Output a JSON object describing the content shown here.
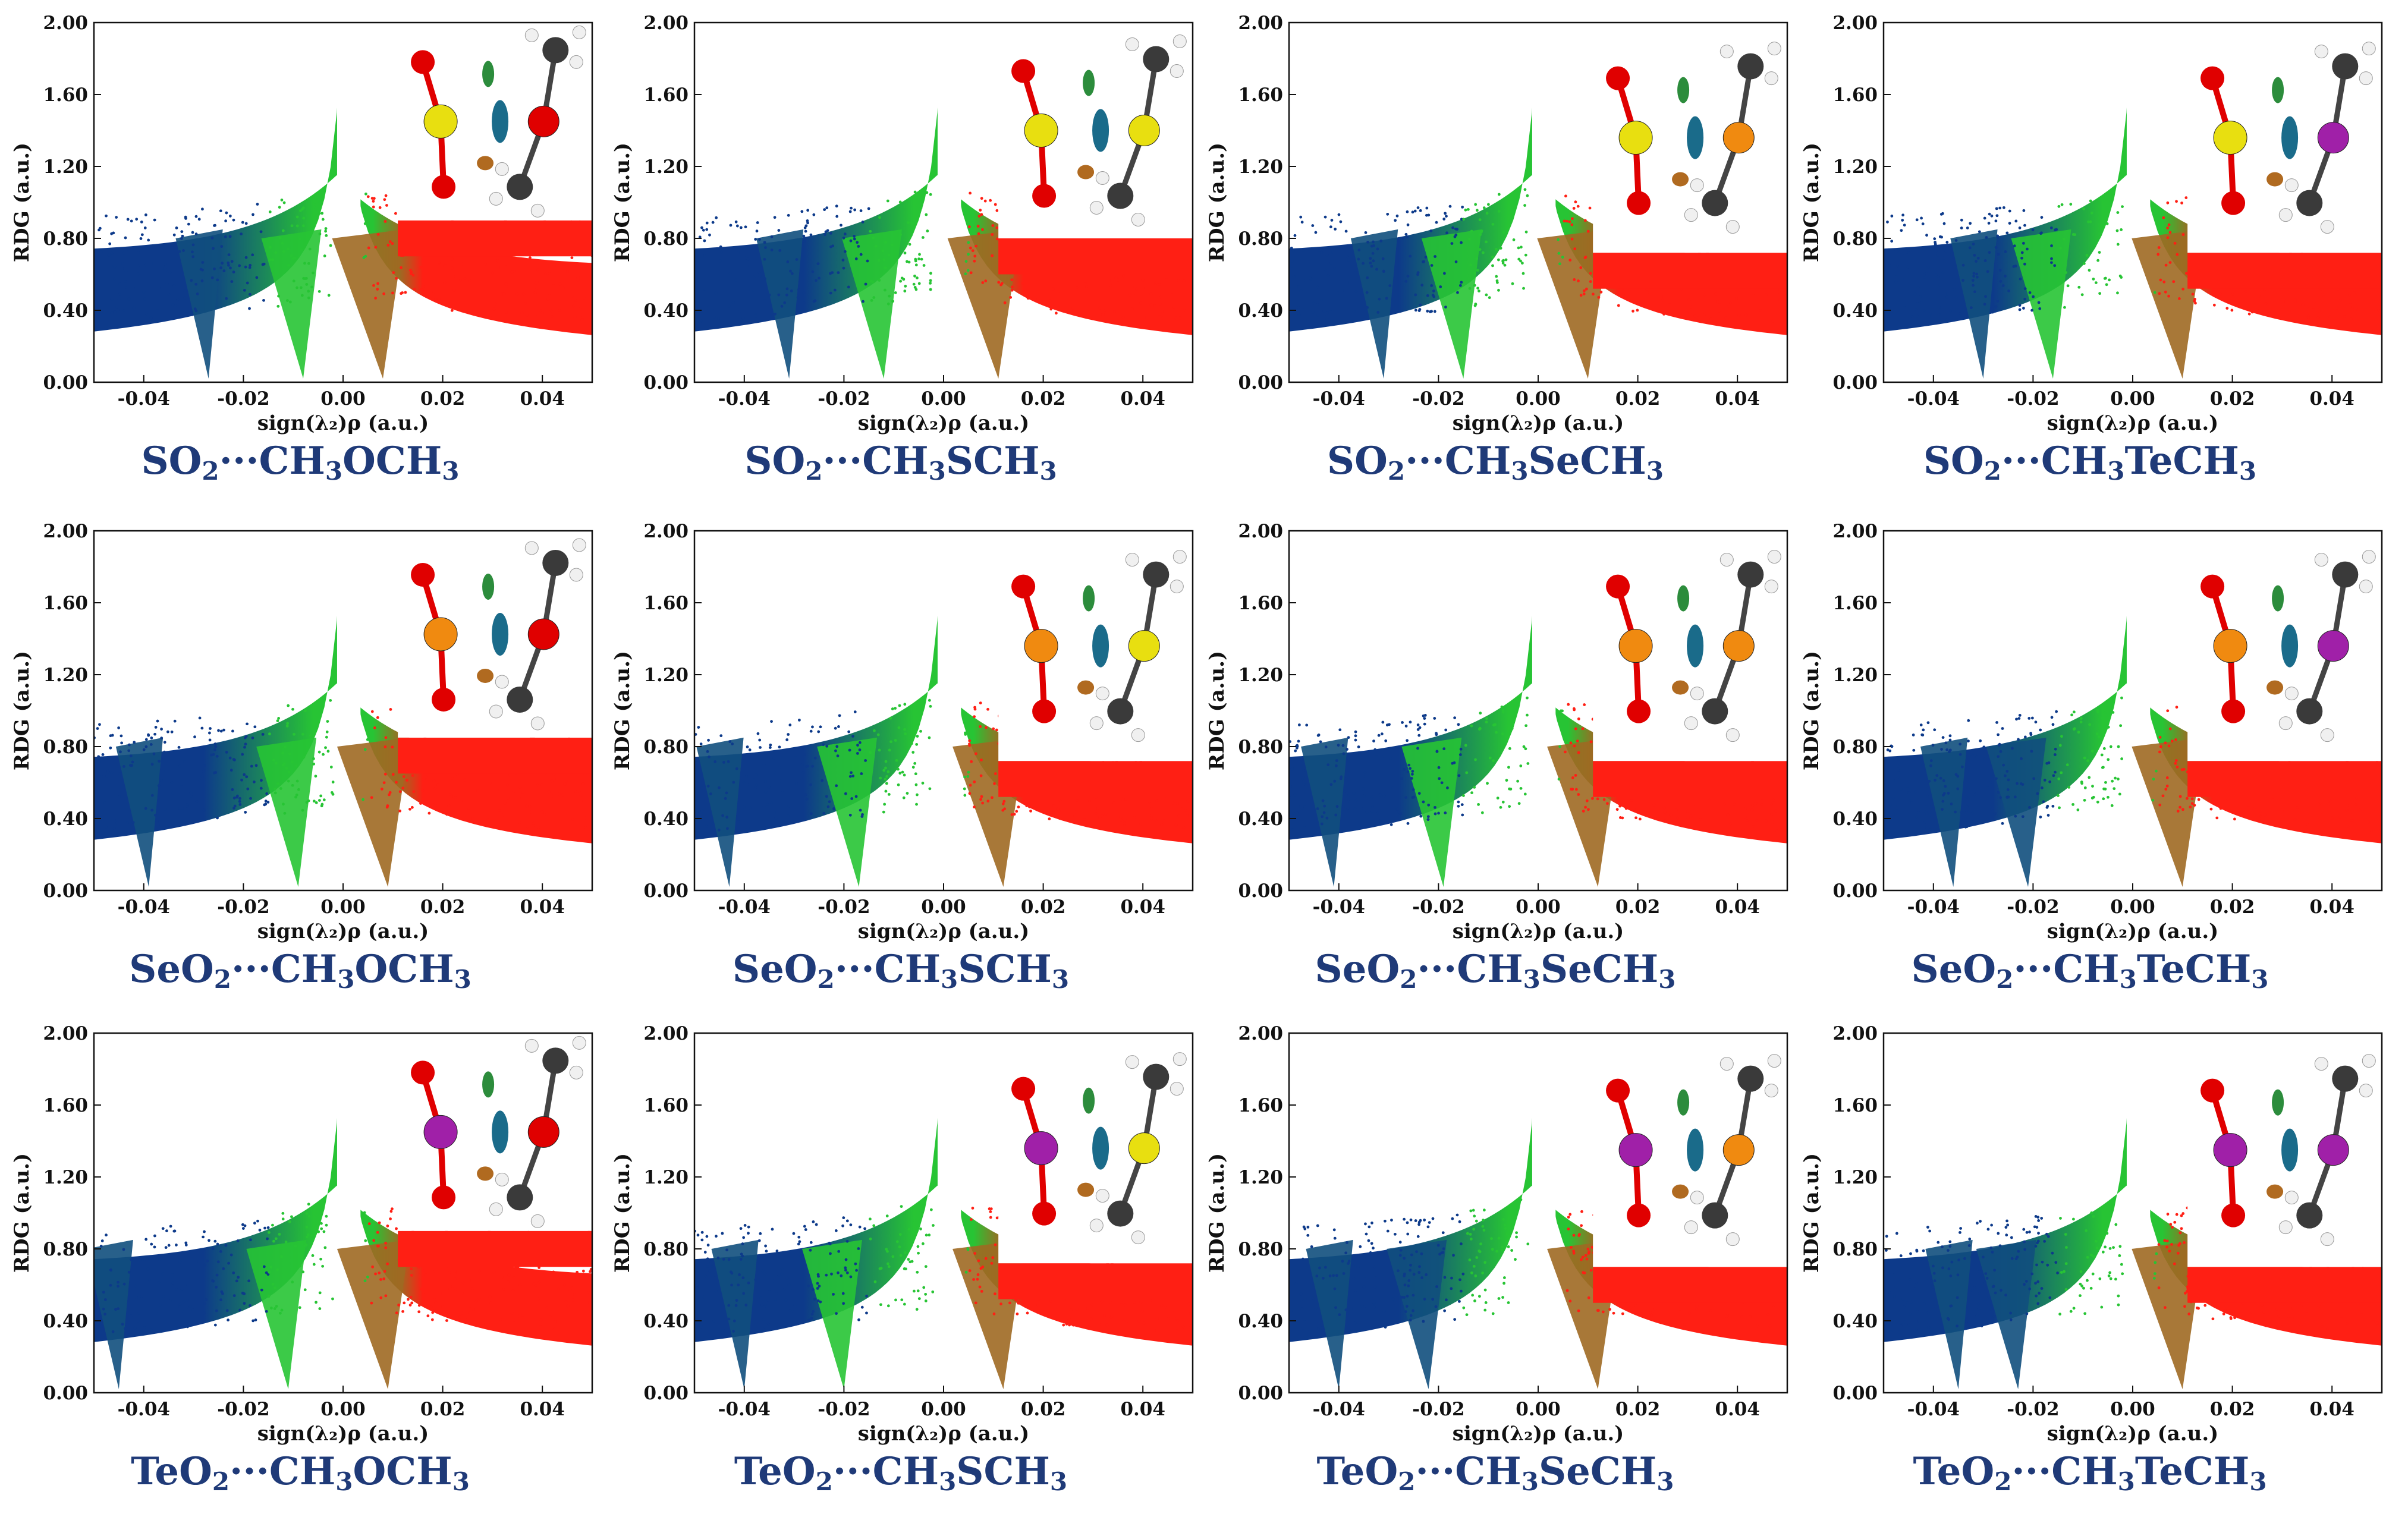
{
  "figure": {
    "colors": {
      "attraction": "#0d3a8a",
      "vdw": "#27c434",
      "repulsion": "#ff1f14",
      "caption": "#1f3a78",
      "atom_S": "#e8df10",
      "atom_Se": "#f08a10",
      "atom_Te": "#a020a8",
      "atom_O": "#e00000",
      "atom_C": "#3a3a3a",
      "atom_H": "#f0f0f0"
    }
  },
  "chart_data": [
    {
      "type": "scatter",
      "title": "SO₂···CH₃OCH₃",
      "caption_parts": {
        "acceptor": "SO",
        "donor": "CH",
        "donor_mid": "OCH"
      },
      "xlabel": "sign(λ₂)ρ (a.u.)",
      "ylabel": "RDG (a.u.)",
      "xlim": [
        -0.05,
        0.05
      ],
      "ylim": [
        0,
        2
      ],
      "xticks": [
        "-0.04",
        "-0.02",
        "0.00",
        "0.02",
        "0.04"
      ],
      "yticks": [
        "0.00",
        "0.40",
        "0.80",
        "1.20",
        "1.60",
        "2.00"
      ],
      "spikes": [
        -0.027,
        -0.008,
        0.008
      ],
      "inset_level": 0.9,
      "inset_atoms": [
        "S",
        "O"
      ]
    },
    {
      "type": "scatter",
      "title": "SO₂···CH₃SCH₃",
      "caption_parts": {
        "acceptor": "SO",
        "donor": "CH",
        "donor_mid": "SCH"
      },
      "xlabel": "sign(λ₂)ρ (a.u.)",
      "ylabel": "RDG (a.u.)",
      "xlim": [
        -0.05,
        0.05
      ],
      "ylim": [
        0,
        2
      ],
      "xticks": [
        "-0.04",
        "-0.02",
        "0.00",
        "0.02",
        "0.04"
      ],
      "yticks": [
        "0.00",
        "0.40",
        "0.80",
        "1.20",
        "1.60",
        "2.00"
      ],
      "spikes": [
        -0.031,
        -0.012,
        0.011
      ],
      "inset_level": 0.8,
      "inset_atoms": [
        "S",
        "S"
      ]
    },
    {
      "type": "scatter",
      "title": "SO₂···CH₃SeCH₃",
      "caption_parts": {
        "acceptor": "SO",
        "donor": "CH",
        "donor_mid": "SeCH"
      },
      "xlabel": "sign(λ₂)ρ (a.u.)",
      "ylabel": "RDG (a.u.)",
      "xlim": [
        -0.05,
        0.05
      ],
      "ylim": [
        0,
        2
      ],
      "xticks": [
        "-0.04",
        "-0.02",
        "0.00",
        "0.02",
        "0.04"
      ],
      "yticks": [
        "0.00",
        "0.40",
        "0.80",
        "1.20",
        "1.60",
        "2.00"
      ],
      "spikes": [
        -0.031,
        -0.015,
        0.01
      ],
      "inset_level": 0.72,
      "inset_atoms": [
        "S",
        "Se"
      ]
    },
    {
      "type": "scatter",
      "title": "SO₂···CH₃TeCH₃",
      "caption_parts": {
        "acceptor": "SO",
        "donor": "CH",
        "donor_mid": "TeCH"
      },
      "xlabel": "sign(λ₂)ρ (a.u.)",
      "ylabel": "RDG (a.u.)",
      "xlim": [
        -0.05,
        0.05
      ],
      "ylim": [
        0,
        2
      ],
      "xticks": [
        "-0.04",
        "-0.02",
        "0.00",
        "0.02",
        "0.04"
      ],
      "yticks": [
        "0.00",
        "0.40",
        "0.80",
        "1.20",
        "1.60",
        "2.00"
      ],
      "spikes": [
        -0.03,
        -0.016,
        0.01
      ],
      "inset_level": 0.72,
      "inset_atoms": [
        "S",
        "Te"
      ]
    },
    {
      "type": "scatter",
      "title": "SeO₂···CH₃OCH₃",
      "caption_parts": {
        "acceptor": "SeO",
        "donor": "CH",
        "donor_mid": "OCH"
      },
      "xlabel": "sign(λ₂)ρ (a.u.)",
      "ylabel": "RDG (a.u.)",
      "xlim": [
        -0.05,
        0.05
      ],
      "ylim": [
        0,
        2
      ],
      "xticks": [
        "-0.04",
        "-0.02",
        "0.00",
        "0.02",
        "0.04"
      ],
      "yticks": [
        "0.00",
        "0.40",
        "0.80",
        "1.20",
        "1.60",
        "2.00"
      ],
      "spikes": [
        -0.039,
        -0.009,
        0.009
      ],
      "inset_level": 0.85,
      "inset_atoms": [
        "Se",
        "O"
      ]
    },
    {
      "type": "scatter",
      "title": "SeO₂···CH₃SCH₃",
      "caption_parts": {
        "acceptor": "SeO",
        "donor": "CH",
        "donor_mid": "SCH"
      },
      "xlabel": "sign(λ₂)ρ (a.u.)",
      "ylabel": "RDG (a.u.)",
      "xlim": [
        -0.05,
        0.05
      ],
      "ylim": [
        0,
        2
      ],
      "xticks": [
        "-0.04",
        "-0.02",
        "0.00",
        "0.02",
        "0.04"
      ],
      "yticks": [
        "0.00",
        "0.40",
        "0.80",
        "1.20",
        "1.60",
        "2.00"
      ],
      "spikes": [
        -0.043,
        -0.017,
        0.012
      ],
      "inset_level": 0.72,
      "inset_atoms": [
        "Se",
        "S"
      ]
    },
    {
      "type": "scatter",
      "title": "SeO₂···CH₃SeCH₃",
      "caption_parts": {
        "acceptor": "SeO",
        "donor": "CH",
        "donor_mid": "SeCH"
      },
      "xlabel": "sign(λ₂)ρ (a.u.)",
      "ylabel": "RDG (a.u.)",
      "xlim": [
        -0.05,
        0.05
      ],
      "ylim": [
        0,
        2
      ],
      "xticks": [
        "-0.04",
        "-0.02",
        "0.00",
        "0.02",
        "0.04"
      ],
      "yticks": [
        "0.00",
        "0.40",
        "0.80",
        "1.20",
        "1.60",
        "2.00"
      ],
      "spikes": [
        -0.041,
        -0.019,
        0.012
      ],
      "inset_level": 0.72,
      "inset_atoms": [
        "Se",
        "Se"
      ]
    },
    {
      "type": "scatter",
      "title": "SeO₂···CH₃TeCH₃",
      "caption_parts": {
        "acceptor": "SeO",
        "donor": "CH",
        "donor_mid": "TeCH"
      },
      "xlabel": "sign(λ₂)ρ (a.u.)",
      "ylabel": "RDG (a.u.)",
      "xlim": [
        -0.05,
        0.05
      ],
      "ylim": [
        0,
        2
      ],
      "xticks": [
        "-0.04",
        "-0.02",
        "0.00",
        "0.02",
        "0.04"
      ],
      "yticks": [
        "0.00",
        "0.40",
        "0.80",
        "1.20",
        "1.60",
        "2.00"
      ],
      "spikes": [
        -0.036,
        -0.021,
        0.01
      ],
      "inset_level": 0.72,
      "inset_atoms": [
        "Se",
        "Te"
      ]
    },
    {
      "type": "scatter",
      "title": "TeO₂···CH₃OCH₃",
      "caption_parts": {
        "acceptor": "TeO",
        "donor": "CH",
        "donor_mid": "OCH"
      },
      "xlabel": "sign(λ₂)ρ (a.u.)",
      "ylabel": "RDG (a.u.)",
      "xlim": [
        -0.05,
        0.05
      ],
      "ylim": [
        0,
        2
      ],
      "xticks": [
        "-0.04",
        "-0.02",
        "0.00",
        "0.02",
        "0.04"
      ],
      "yticks": [
        "0.00",
        "0.40",
        "0.80",
        "1.20",
        "1.60",
        "2.00"
      ],
      "spikes": [
        -0.045,
        -0.011,
        0.009
      ],
      "inset_level": 0.9,
      "inset_atoms": [
        "Te",
        "O"
      ]
    },
    {
      "type": "scatter",
      "title": "TeO₂···CH₃SCH₃",
      "caption_parts": {
        "acceptor": "TeO",
        "donor": "CH",
        "donor_mid": "SCH"
      },
      "xlabel": "sign(λ₂)ρ (a.u.)",
      "ylabel": "RDG (a.u.)",
      "xlim": [
        -0.05,
        0.05
      ],
      "ylim": [
        0,
        2
      ],
      "xticks": [
        "-0.04",
        "-0.02",
        "0.00",
        "0.02",
        "0.04"
      ],
      "yticks": [
        "0.00",
        "0.40",
        "0.80",
        "1.20",
        "1.60",
        "2.00"
      ],
      "spikes": [
        -0.04,
        -0.02,
        0.012
      ],
      "inset_level": 0.72,
      "inset_atoms": [
        "Te",
        "S"
      ]
    },
    {
      "type": "scatter",
      "title": "TeO₂···CH₃SeCH₃",
      "caption_parts": {
        "acceptor": "TeO",
        "donor": "CH",
        "donor_mid": "SeCH"
      },
      "xlabel": "sign(λ₂)ρ (a.u.)",
      "ylabel": "RDG (a.u.)",
      "xlim": [
        -0.05,
        0.05
      ],
      "ylim": [
        0,
        2
      ],
      "xticks": [
        "-0.04",
        "-0.02",
        "0.00",
        "0.02",
        "0.04"
      ],
      "yticks": [
        "0.00",
        "0.40",
        "0.80",
        "1.20",
        "1.60",
        "2.00"
      ],
      "spikes": [
        -0.04,
        -0.022,
        0.012
      ],
      "inset_level": 0.7,
      "inset_atoms": [
        "Te",
        "Se"
      ]
    },
    {
      "type": "scatter",
      "title": "TeO₂···CH₃TeCH₃",
      "caption_parts": {
        "acceptor": "TeO",
        "donor": "CH",
        "donor_mid": "TeCH"
      },
      "xlabel": "sign(λ₂)ρ (a.u.)",
      "ylabel": "RDG (a.u.)",
      "xlim": [
        -0.05,
        0.05
      ],
      "ylim": [
        0,
        2
      ],
      "xticks": [
        "-0.04",
        "-0.02",
        "0.00",
        "0.02",
        "0.04"
      ],
      "yticks": [
        "0.00",
        "0.40",
        "0.80",
        "1.20",
        "1.60",
        "2.00"
      ],
      "spikes": [
        -0.035,
        -0.023,
        0.01
      ],
      "inset_level": 0.7,
      "inset_atoms": [
        "Te",
        "Te"
      ]
    }
  ]
}
